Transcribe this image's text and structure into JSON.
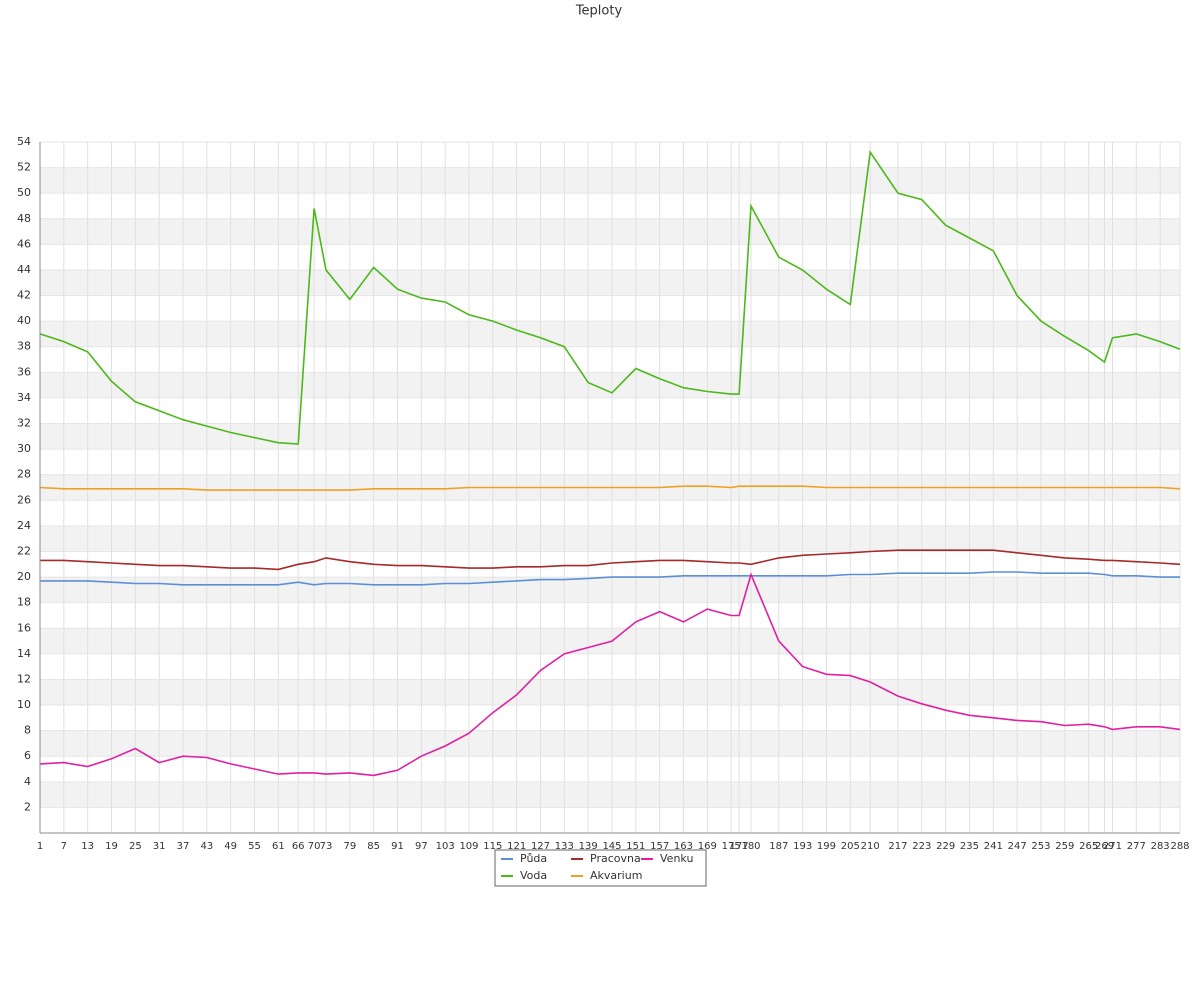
{
  "chart_data": {
    "type": "line",
    "title": "Teploty",
    "x": [
      1,
      7,
      13,
      19,
      25,
      31,
      37,
      43,
      49,
      55,
      61,
      66,
      70,
      73,
      79,
      85,
      91,
      97,
      103,
      109,
      115,
      121,
      127,
      133,
      139,
      145,
      151,
      157,
      163,
      169,
      175,
      177,
      180,
      187,
      193,
      199,
      205,
      210,
      217,
      223,
      229,
      235,
      241,
      247,
      253,
      259,
      265,
      269,
      271,
      277,
      283,
      288
    ],
    "xlim": [
      1,
      288
    ],
    "xticks": [
      1,
      7,
      13,
      19,
      25,
      31,
      37,
      43,
      49,
      55,
      61,
      66,
      70,
      73,
      79,
      85,
      91,
      97,
      103,
      109,
      115,
      121,
      127,
      133,
      139,
      145,
      151,
      157,
      163,
      169,
      175,
      177,
      180,
      187,
      193,
      199,
      205,
      210,
      217,
      223,
      229,
      235,
      241,
      247,
      253,
      259,
      265,
      269,
      271,
      277,
      283,
      288
    ],
    "ylim": [
      0,
      54
    ],
    "yticks": [
      2,
      4,
      6,
      8,
      10,
      12,
      14,
      16,
      18,
      20,
      22,
      24,
      26,
      28,
      30,
      32,
      34,
      36,
      38,
      40,
      42,
      44,
      46,
      48,
      50,
      52,
      54
    ],
    "grid": true,
    "legend": "bottom",
    "series": [
      {
        "name": "Půda",
        "color": "#5b8fd6",
        "values": [
          19.7,
          19.7,
          19.7,
          19.6,
          19.5,
          19.5,
          19.4,
          19.4,
          19.4,
          19.4,
          19.4,
          19.6,
          19.4,
          19.5,
          19.5,
          19.4,
          19.4,
          19.4,
          19.5,
          19.5,
          19.6,
          19.7,
          19.8,
          19.8,
          19.9,
          20.0,
          20.0,
          20.0,
          20.1,
          20.1,
          20.1,
          20.1,
          20.1,
          20.1,
          20.1,
          20.1,
          20.2,
          20.2,
          20.3,
          20.3,
          20.3,
          20.3,
          20.4,
          20.4,
          20.3,
          20.3,
          20.3,
          20.2,
          20.1,
          20.1,
          20.0,
          20.0
        ]
      },
      {
        "name": "Pracovna",
        "color": "#a52a2a",
        "values": [
          21.3,
          21.3,
          21.2,
          21.1,
          21.0,
          20.9,
          20.9,
          20.8,
          20.7,
          20.7,
          20.6,
          21.0,
          21.2,
          21.5,
          21.2,
          21.0,
          20.9,
          20.9,
          20.8,
          20.7,
          20.7,
          20.8,
          20.8,
          20.9,
          20.9,
          21.1,
          21.2,
          21.3,
          21.3,
          21.2,
          21.1,
          21.1,
          21.0,
          21.5,
          21.7,
          21.8,
          21.9,
          22.0,
          22.1,
          22.1,
          22.1,
          22.1,
          22.1,
          21.9,
          21.7,
          21.5,
          21.4,
          21.3,
          21.3,
          21.2,
          21.1,
          21.0
        ]
      },
      {
        "name": "Venku",
        "color": "#e020a0",
        "values": [
          5.4,
          5.5,
          5.2,
          5.8,
          6.6,
          5.5,
          6.0,
          5.9,
          5.4,
          5.0,
          4.6,
          4.7,
          4.7,
          4.6,
          4.7,
          4.5,
          4.9,
          6.0,
          6.8,
          7.8,
          9.4,
          10.8,
          12.7,
          14.0,
          14.5,
          15.0,
          16.5,
          17.3,
          16.5,
          17.5,
          17.0,
          17.0,
          20.2,
          15.0,
          13.0,
          12.4,
          12.3,
          11.8,
          10.7,
          10.1,
          9.6,
          9.2,
          9.0,
          8.8,
          8.7,
          8.4,
          8.5,
          8.3,
          8.1,
          8.3,
          8.3,
          8.1
        ]
      },
      {
        "name": "Voda",
        "color": "#4cb81a",
        "values": [
          39.0,
          38.4,
          37.6,
          35.3,
          33.7,
          33.0,
          32.3,
          31.8,
          31.3,
          30.9,
          30.5,
          30.4,
          48.8,
          44.0,
          41.7,
          44.2,
          42.5,
          41.8,
          41.5,
          40.5,
          40.0,
          39.3,
          38.7,
          38.0,
          35.2,
          34.4,
          36.3,
          35.5,
          34.8,
          34.5,
          34.3,
          34.3,
          49.0,
          45.0,
          44.0,
          42.5,
          41.3,
          53.2,
          50.0,
          49.5,
          47.5,
          46.5,
          45.5,
          42.0,
          40.0,
          38.8,
          37.7,
          36.8,
          38.7,
          39.0,
          38.4,
          37.8
        ]
      },
      {
        "name": "Akvarium",
        "color": "#f0a020",
        "values": [
          27.0,
          26.9,
          26.9,
          26.9,
          26.9,
          26.9,
          26.9,
          26.8,
          26.8,
          26.8,
          26.8,
          26.8,
          26.8,
          26.8,
          26.8,
          26.9,
          26.9,
          26.9,
          26.9,
          27.0,
          27.0,
          27.0,
          27.0,
          27.0,
          27.0,
          27.0,
          27.0,
          27.0,
          27.1,
          27.1,
          27.0,
          27.1,
          27.1,
          27.1,
          27.1,
          27.0,
          27.0,
          27.0,
          27.0,
          27.0,
          27.0,
          27.0,
          27.0,
          27.0,
          27.0,
          27.0,
          27.0,
          27.0,
          27.0,
          27.0,
          27.0,
          26.9
        ]
      }
    ]
  }
}
